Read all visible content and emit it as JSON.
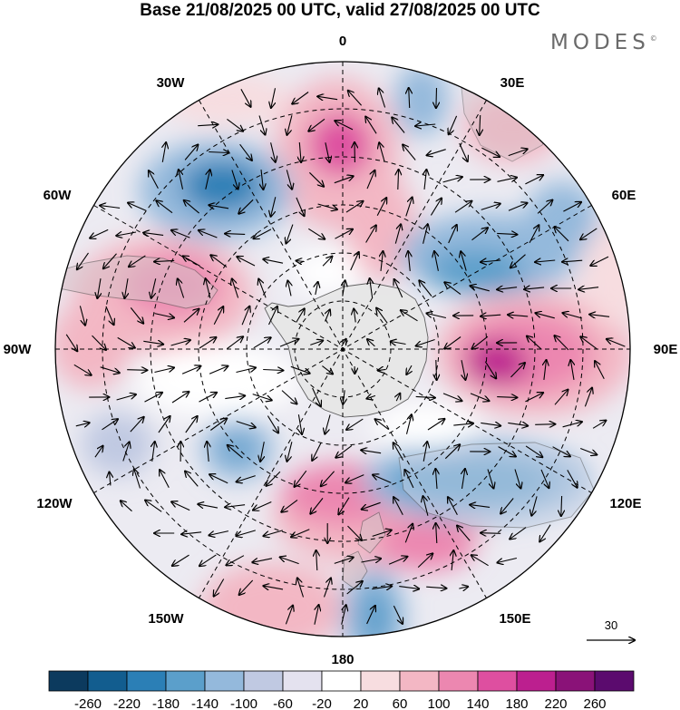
{
  "title": "Base 21/08/2025 00 UTC, valid 27/08/2025 00 UTC",
  "brand": "MODES",
  "brand_mark": "©",
  "meridian_labels": {
    "top": "0",
    "top_right": "30E",
    "right_upper": "60E",
    "right": "90E",
    "right_lower": "120E",
    "bottom_right": "150E",
    "bottom": "180",
    "bottom_left": "150W",
    "left_lower": "120W",
    "left": "90W",
    "left_upper": "60W",
    "top_left": "30W"
  },
  "reference_vector_label": "30",
  "colorbar": {
    "labels": [
      "-260",
      "-220",
      "-180",
      "-140",
      "-100",
      "-60",
      "-20",
      "20",
      "60",
      "100",
      "140",
      "180",
      "220",
      "260"
    ],
    "colors": [
      "#0c3a5e",
      "#125d8f",
      "#2b7fb6",
      "#5b9fcb",
      "#94b9dc",
      "#c0c9e2",
      "#e4e2ef",
      "#ffffff",
      "#f7dde0",
      "#f3b7c4",
      "#ec87b0",
      "#de4fa0",
      "#bc1f8f",
      "#8a1278",
      "#5b0b6e"
    ]
  },
  "map_colors": {
    "ocean_neutral": "#ecebf2",
    "land": "#e7e7e7",
    "coast": "#555555"
  }
}
